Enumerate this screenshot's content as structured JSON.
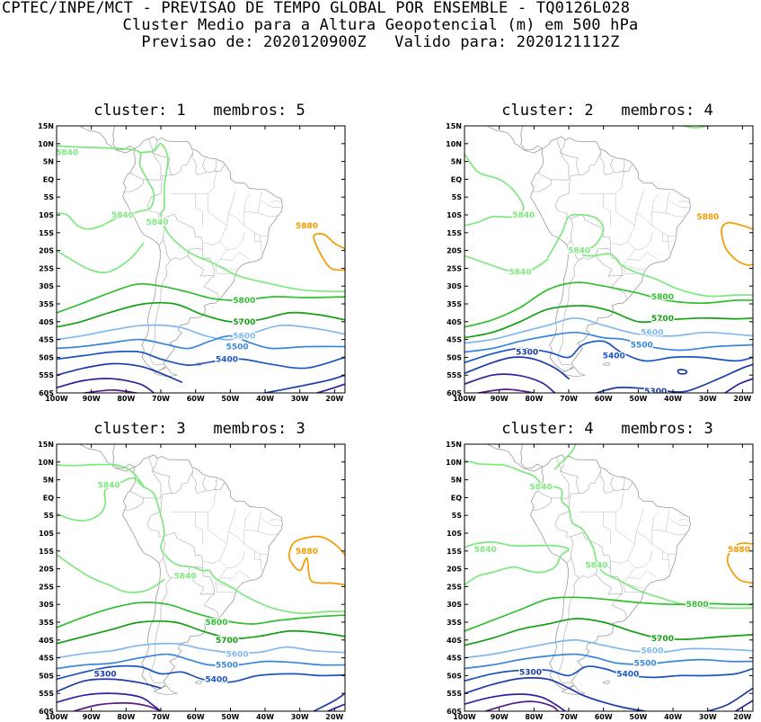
{
  "header": {
    "line1": "CPTEC/INPE/MCT - PREVISAO DE TEMPO GLOBAL POR ENSEMBLE - TQ0126L028",
    "line2": "Cluster Medio para a Altura Geopotencial (m) em 500 hPa",
    "line3": "Previsao de: 2020120900Z   Valido para: 2020121112Z"
  },
  "axes": {
    "lat_labels": [
      "15N",
      "10N",
      "5N",
      "EQ",
      "5S",
      "10S",
      "15S",
      "20S",
      "25S",
      "30S",
      "35S",
      "40S",
      "45S",
      "50S",
      "55S",
      "60S"
    ],
    "lon_labels": [
      "100W",
      "90W",
      "80W",
      "70W",
      "60W",
      "50W",
      "40W",
      "30W",
      "20W"
    ]
  },
  "colors": {
    "5880": "#f59a00",
    "5840": "#7ee87e",
    "5800": "#2fbf2f",
    "5700": "#14a014",
    "5600": "#7fb8f0",
    "5500": "#3a86d8",
    "5400": "#1a55c0",
    "5300": "#1a3aa8",
    "5200": "#3020a0",
    "5100": "#5a1a8a"
  },
  "panels": [
    {
      "title": "cluster: 1   membros: 5",
      "labels": [
        {
          "text": "5840",
          "lon": -97,
          "lat": 7.5,
          "c": "5840"
        },
        {
          "text": "5840",
          "lon": -81,
          "lat": -10,
          "c": "5840"
        },
        {
          "text": "5840",
          "lon": -71,
          "lat": -12,
          "c": "5840"
        },
        {
          "text": "5880",
          "lon": -28,
          "lat": -13,
          "c": "5880"
        },
        {
          "text": "5800",
          "lon": -46,
          "lat": -34,
          "c": "5800"
        },
        {
          "text": "5700",
          "lon": -46,
          "lat": -40,
          "c": "5700"
        },
        {
          "text": "5600",
          "lon": -46,
          "lat": -44,
          "c": "5600"
        },
        {
          "text": "5500",
          "lon": -48,
          "lat": -47,
          "c": "5500"
        },
        {
          "text": "5400",
          "lon": -51,
          "lat": -50.5,
          "c": "5400"
        }
      ]
    },
    {
      "title": "cluster: 2   membros: 4",
      "labels": [
        {
          "text": "5840",
          "lon": -83,
          "lat": -10,
          "c": "5840"
        },
        {
          "text": "5840",
          "lon": -67,
          "lat": -20,
          "c": "5840"
        },
        {
          "text": "5840",
          "lon": -84,
          "lat": -26,
          "c": "5840"
        },
        {
          "text": "5880",
          "lon": -30,
          "lat": -10.5,
          "c": "5880"
        },
        {
          "text": "5800",
          "lon": -43,
          "lat": -33,
          "c": "5800"
        },
        {
          "text": "5700",
          "lon": -43,
          "lat": -39,
          "c": "5700"
        },
        {
          "text": "5600",
          "lon": -46,
          "lat": -43,
          "c": "5600"
        },
        {
          "text": "5500",
          "lon": -49,
          "lat": -46.5,
          "c": "5500"
        },
        {
          "text": "5400",
          "lon": -57,
          "lat": -49.5,
          "c": "5400"
        },
        {
          "text": "5300",
          "lon": -82,
          "lat": -48.5,
          "c": "5300"
        },
        {
          "text": "5300",
          "lon": -45,
          "lat": -59.5,
          "c": "5300"
        }
      ]
    },
    {
      "title": "cluster: 3   membros: 3",
      "labels": [
        {
          "text": "5840",
          "lon": -85,
          "lat": 3.5,
          "c": "5840"
        },
        {
          "text": "5840",
          "lon": -63,
          "lat": -22,
          "c": "5840"
        },
        {
          "text": "5880",
          "lon": -28,
          "lat": -15,
          "c": "5880"
        },
        {
          "text": "5800",
          "lon": -54,
          "lat": -35,
          "c": "5800"
        },
        {
          "text": "5700",
          "lon": -51,
          "lat": -40,
          "c": "5700"
        },
        {
          "text": "5600",
          "lon": -48,
          "lat": -44,
          "c": "5600"
        },
        {
          "text": "5500",
          "lon": -51,
          "lat": -47,
          "c": "5500"
        },
        {
          "text": "5400",
          "lon": -54,
          "lat": -51,
          "c": "5400"
        },
        {
          "text": "5300",
          "lon": -86,
          "lat": -49.5,
          "c": "5300"
        }
      ]
    },
    {
      "title": "cluster: 4   membros: 3",
      "labels": [
        {
          "text": "5840",
          "lon": -78,
          "lat": 3,
          "c": "5840"
        },
        {
          "text": "5840",
          "lon": -94,
          "lat": -14.5,
          "c": "5840"
        },
        {
          "text": "5840",
          "lon": -62,
          "lat": -19,
          "c": "5840"
        },
        {
          "text": "5880",
          "lon": -21,
          "lat": -14.5,
          "c": "5880"
        },
        {
          "text": "5800",
          "lon": -33,
          "lat": -30,
          "c": "5800"
        },
        {
          "text": "5700",
          "lon": -43,
          "lat": -39.5,
          "c": "5700"
        },
        {
          "text": "5600",
          "lon": -46,
          "lat": -43,
          "c": "5600"
        },
        {
          "text": "5500",
          "lon": -48,
          "lat": -46.5,
          "c": "5500"
        },
        {
          "text": "5400",
          "lon": -53,
          "lat": -49.5,
          "c": "5400"
        },
        {
          "text": "5300",
          "lon": -81,
          "lat": -49,
          "c": "5300"
        }
      ]
    }
  ]
}
